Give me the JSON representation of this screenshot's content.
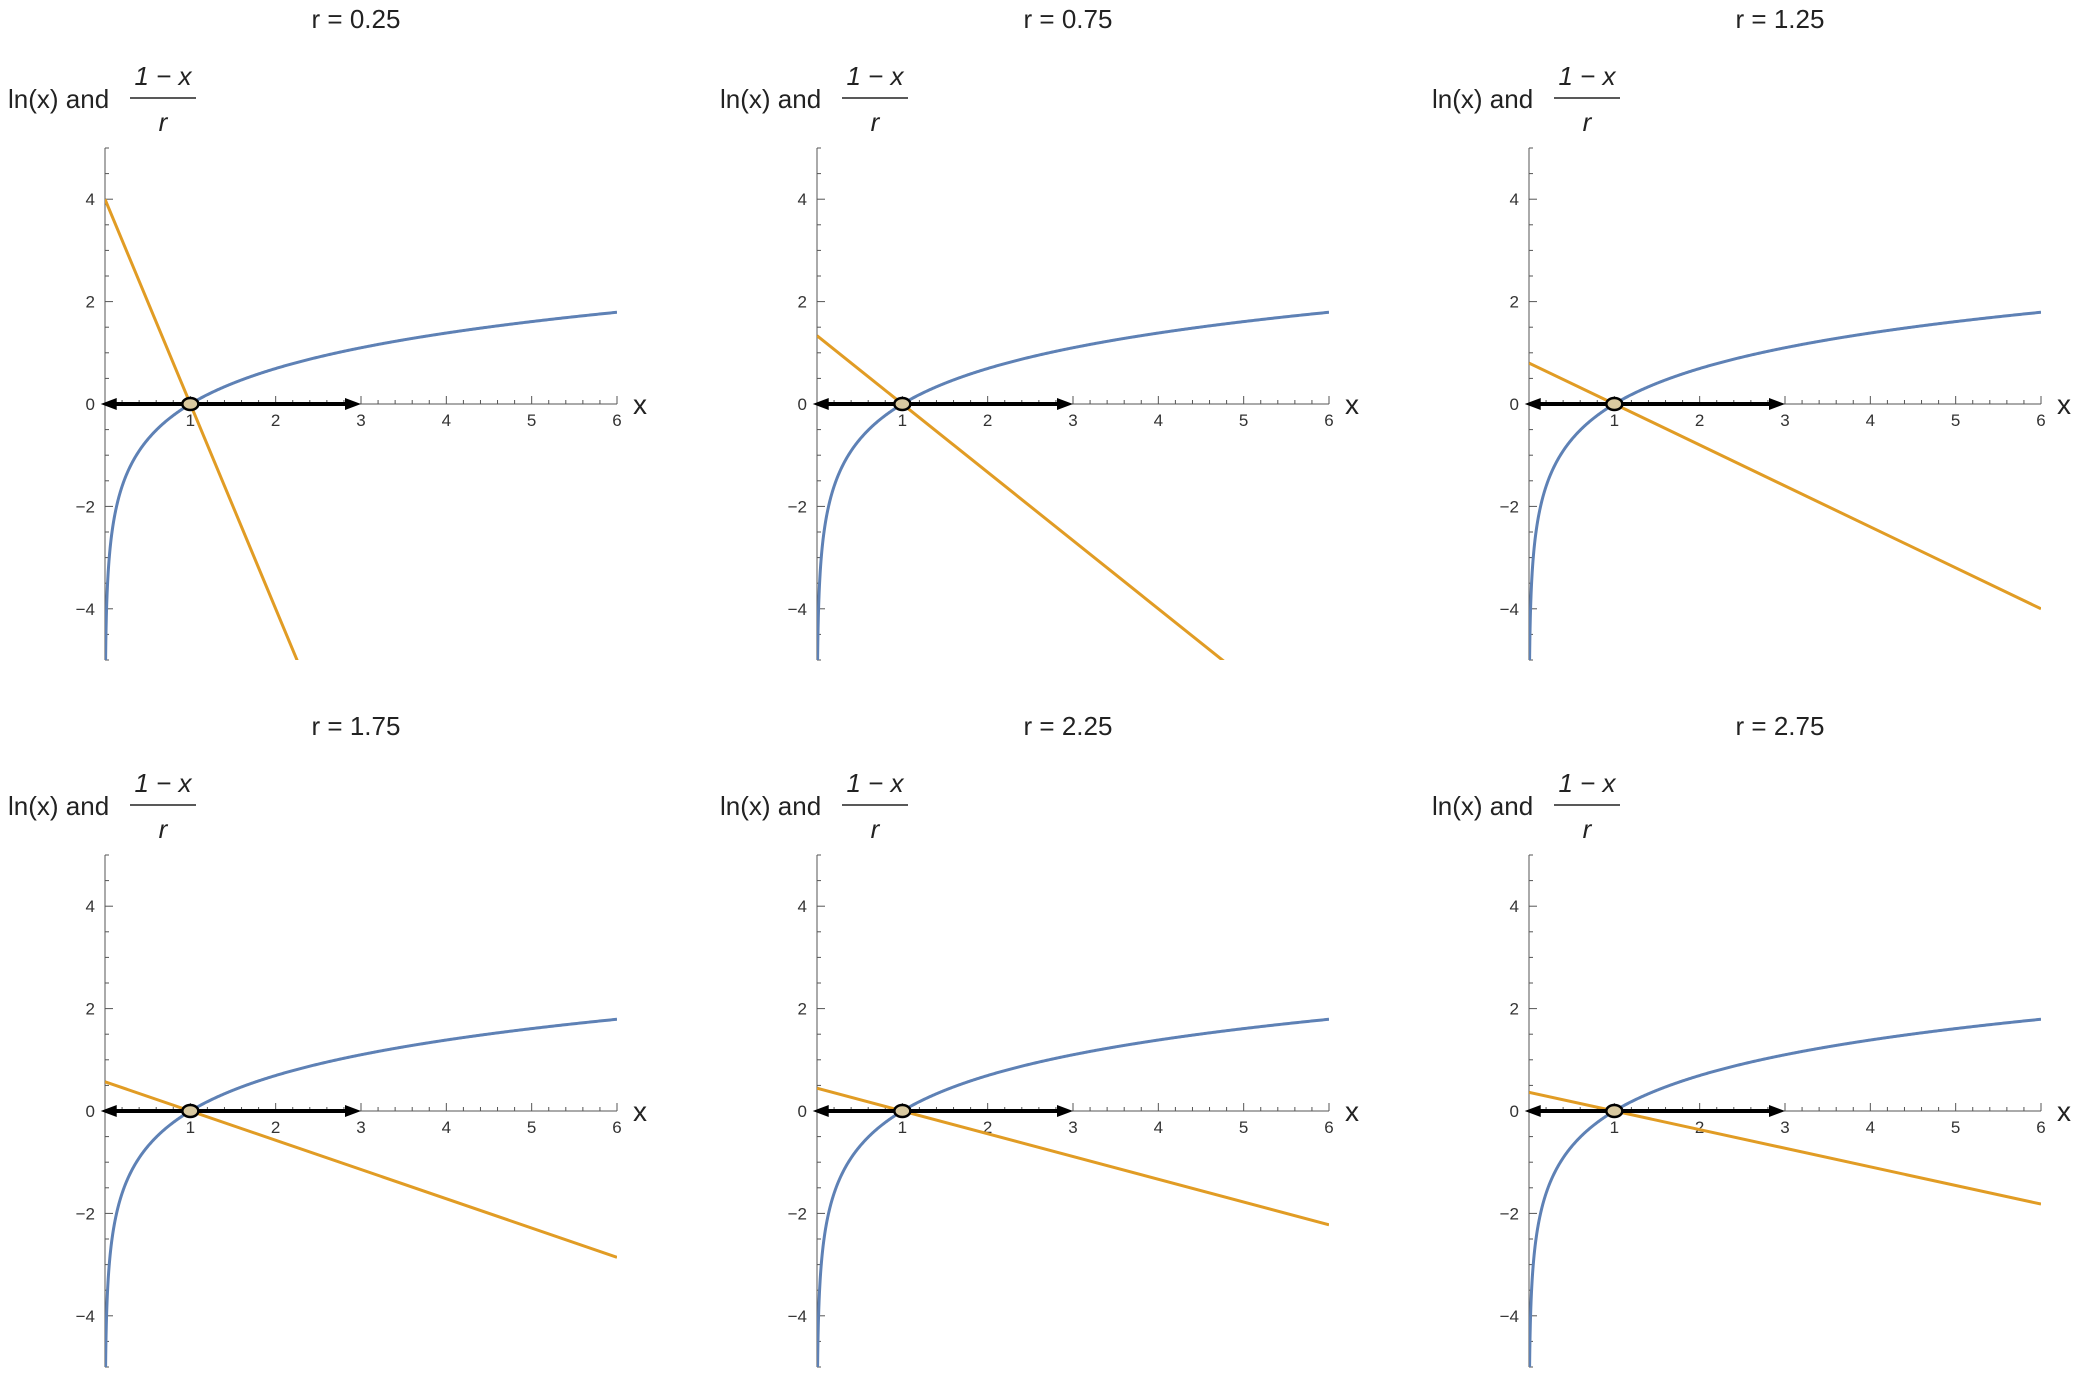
{
  "colors": {
    "ln_curve": "#5E81B5",
    "line": "#E19C24",
    "axis": "#555555",
    "arrow": "#000000",
    "marker": "#000000"
  },
  "chart_data": [
    {
      "type": "line",
      "title": "r = 0.25",
      "r": 0.25,
      "ylabel": {
        "prefix": "ln(x) and",
        "numerator": "1 − x",
        "denominator": "r"
      },
      "xlabel": "x",
      "xlim": [
        0,
        6
      ],
      "ylim": [
        -5,
        5
      ],
      "x_ticks": [
        1,
        2,
        3,
        4,
        5,
        6
      ],
      "y_ticks": [
        -4,
        -2,
        0,
        2,
        4
      ],
      "series": [
        {
          "expr": "ln(x)",
          "color": "#5E81B5"
        },
        {
          "expr": "(1 - x)/r",
          "color": "#E19C24"
        }
      ],
      "intersection": [
        1,
        0
      ],
      "arrow_range": [
        -0.05,
        3
      ]
    },
    {
      "type": "line",
      "title": "r = 0.75",
      "r": 0.75,
      "ylabel": {
        "prefix": "ln(x) and",
        "numerator": "1 − x",
        "denominator": "r"
      },
      "xlabel": "x",
      "xlim": [
        0,
        6
      ],
      "ylim": [
        -5,
        5
      ],
      "x_ticks": [
        1,
        2,
        3,
        4,
        5,
        6
      ],
      "y_ticks": [
        -4,
        -2,
        0,
        2,
        4
      ],
      "series": [
        {
          "expr": "ln(x)",
          "color": "#5E81B5"
        },
        {
          "expr": "(1 - x)/r",
          "color": "#E19C24"
        }
      ],
      "intersection": [
        1,
        0
      ],
      "arrow_range": [
        -0.05,
        3
      ]
    },
    {
      "type": "line",
      "title": "r = 1.25",
      "r": 1.25,
      "ylabel": {
        "prefix": "ln(x) and",
        "numerator": "1 − x",
        "denominator": "r"
      },
      "xlabel": "x",
      "xlim": [
        0,
        6
      ],
      "ylim": [
        -5,
        5
      ],
      "x_ticks": [
        1,
        2,
        3,
        4,
        5,
        6
      ],
      "y_ticks": [
        -4,
        -2,
        0,
        2,
        4
      ],
      "series": [
        {
          "expr": "ln(x)",
          "color": "#5E81B5"
        },
        {
          "expr": "(1 - x)/r",
          "color": "#E19C24"
        }
      ],
      "intersection": [
        1,
        0
      ],
      "arrow_range": [
        -0.05,
        3
      ]
    },
    {
      "type": "line",
      "title": "r = 1.75",
      "r": 1.75,
      "ylabel": {
        "prefix": "ln(x) and",
        "numerator": "1 − x",
        "denominator": "r"
      },
      "xlabel": "x",
      "xlim": [
        0,
        6
      ],
      "ylim": [
        -5,
        5
      ],
      "x_ticks": [
        1,
        2,
        3,
        4,
        5,
        6
      ],
      "y_ticks": [
        -4,
        -2,
        0,
        2,
        4
      ],
      "series": [
        {
          "expr": "ln(x)",
          "color": "#5E81B5"
        },
        {
          "expr": "(1 - x)/r",
          "color": "#E19C24"
        }
      ],
      "intersection": [
        1,
        0
      ],
      "arrow_range": [
        -0.05,
        3
      ]
    },
    {
      "type": "line",
      "title": "r = 2.25",
      "r": 2.25,
      "ylabel": {
        "prefix": "ln(x) and",
        "numerator": "1 − x",
        "denominator": "r"
      },
      "xlabel": "x",
      "xlim": [
        0,
        6
      ],
      "ylim": [
        -5,
        5
      ],
      "x_ticks": [
        1,
        2,
        3,
        4,
        5,
        6
      ],
      "y_ticks": [
        -4,
        -2,
        0,
        2,
        4
      ],
      "series": [
        {
          "expr": "ln(x)",
          "color": "#5E81B5"
        },
        {
          "expr": "(1 - x)/r",
          "color": "#E19C24"
        }
      ],
      "intersection": [
        1,
        0
      ],
      "arrow_range": [
        -0.05,
        3
      ]
    },
    {
      "type": "line",
      "title": "r = 2.75",
      "r": 2.75,
      "ylabel": {
        "prefix": "ln(x) and",
        "numerator": "1 − x",
        "denominator": "r"
      },
      "xlabel": "x",
      "xlim": [
        0,
        6
      ],
      "ylim": [
        -5,
        5
      ],
      "x_ticks": [
        1,
        2,
        3,
        4,
        5,
        6
      ],
      "y_ticks": [
        -4,
        -2,
        0,
        2,
        4
      ],
      "series": [
        {
          "expr": "ln(x)",
          "color": "#5E81B5"
        },
        {
          "expr": "(1 - x)/r",
          "color": "#E19C24"
        }
      ],
      "intersection": [
        1,
        0
      ],
      "arrow_range": [
        -0.05,
        3
      ]
    }
  ]
}
